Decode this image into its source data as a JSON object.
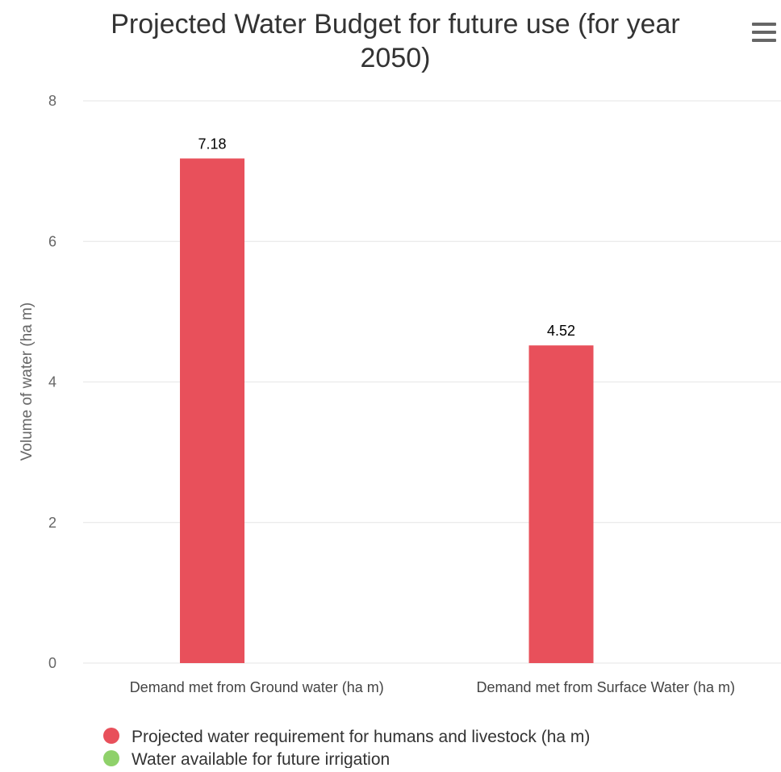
{
  "chart_data": {
    "type": "bar",
    "title_lines": [
      "Projected Water Budget for future use (for year",
      "2050)"
    ],
    "categories": [
      "Demand met from Ground water (ha m)",
      "Demand met from Surface Water (ha m)"
    ],
    "series": [
      {
        "name": "Projected water requirement for humans and livestock (ha m)",
        "color": "#e8505b",
        "values": [
          7.18,
          4.52
        ]
      },
      {
        "name": "Water available for future irrigation",
        "color": "#8fd16a",
        "values": [
          0,
          0
        ]
      }
    ],
    "ylabel": "Volume of water (ha m)",
    "xlabel": "",
    "ylim": [
      0,
      8
    ],
    "yticks": [
      0,
      2,
      4,
      6,
      8
    ],
    "grid": true,
    "data_labels": true,
    "legend_position": "bottom-left"
  },
  "icons": {
    "menu": "hamburger-menu-icon"
  }
}
